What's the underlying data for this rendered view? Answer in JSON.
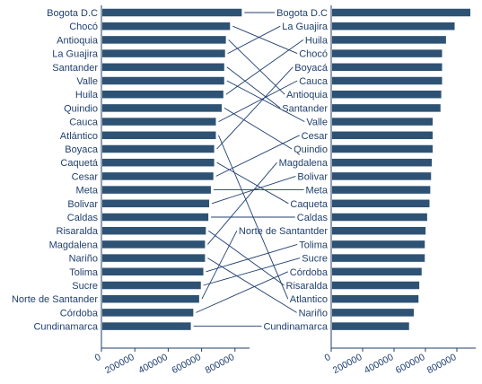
{
  "colors": {
    "bar": "#2e5274",
    "text": "#1f3f6e",
    "line": "#1f3f6e"
  },
  "chart_data": [
    {
      "type": "bar",
      "orientation": "horizontal",
      "panel": "left",
      "categories": [
        "Bogota D.C",
        "Chocó",
        "Antioquia",
        "La Guajira",
        "Santander",
        "Valle",
        "Huila",
        "Quindio",
        "Cauca",
        "Atlántico",
        "Boyaca",
        "Caquetá",
        "Cesar",
        "Meta",
        "Bolivar",
        "Caldas",
        "Risaralda",
        "Magdalena",
        "Nariño",
        "Tolima",
        "Sucre",
        "Norte de Santander",
        "Córdoba",
        "Cundinamarca"
      ],
      "values": [
        835000,
        765000,
        740000,
        735000,
        730000,
        730000,
        725000,
        715000,
        680000,
        680000,
        670000,
        670000,
        665000,
        650000,
        640000,
        635000,
        620000,
        615000,
        615000,
        605000,
        590000,
        580000,
        545000,
        530000
      ],
      "xlim": [
        0,
        900000
      ],
      "xticks": [
        "0",
        "200000",
        "400000",
        "600000",
        "800000"
      ],
      "xtick_values": [
        0,
        200000,
        400000,
        600000,
        800000
      ]
    },
    {
      "type": "bar",
      "orientation": "horizontal",
      "panel": "right",
      "categories": [
        "Bogota D.C",
        "La Guajira",
        "Huila",
        "Chocó",
        "Boyacá",
        "Cauca",
        "Antioquia",
        "Santander",
        "Valle",
        "Cesar",
        "Quindio",
        "Magdalena",
        "Bolivar",
        "Meta",
        "Caqueta",
        "Caldas",
        "Norte de Santantder",
        "Tolima",
        "Sucre",
        "Córdoba",
        "Risaralda",
        "Atlantico",
        "Nariño",
        "Cundinamarca"
      ],
      "values": [
        880000,
        780000,
        725000,
        700000,
        700000,
        700000,
        695000,
        690000,
        640000,
        640000,
        640000,
        635000,
        630000,
        625000,
        620000,
        605000,
        595000,
        590000,
        590000,
        570000,
        555000,
        550000,
        520000,
        490000
      ],
      "xlim": [
        0,
        900000
      ],
      "xticks": [
        "0",
        "200000",
        "400000",
        "600000",
        "800000"
      ],
      "xtick_values": [
        0,
        200000,
        400000,
        600000,
        800000
      ]
    }
  ],
  "links": [
    [
      "Bogota D.C",
      "Bogota D.C"
    ],
    [
      "Chocó",
      "Chocó"
    ],
    [
      "Antioquia",
      "Antioquia"
    ],
    [
      "La Guajira",
      "La Guajira"
    ],
    [
      "Santander",
      "Santander"
    ],
    [
      "Valle",
      "Valle"
    ],
    [
      "Huila",
      "Huila"
    ],
    [
      "Quindio",
      "Quindio"
    ],
    [
      "Cauca",
      "Cauca"
    ],
    [
      "Atlántico",
      "Atlantico"
    ],
    [
      "Boyaca",
      "Boyacá"
    ],
    [
      "Caquetá",
      "Caqueta"
    ],
    [
      "Cesar",
      "Cesar"
    ],
    [
      "Meta",
      "Meta"
    ],
    [
      "Bolivar",
      "Bolivar"
    ],
    [
      "Caldas",
      "Caldas"
    ],
    [
      "Risaralda",
      "Risaralda"
    ],
    [
      "Magdalena",
      "Magdalena"
    ],
    [
      "Nariño",
      "Nariño"
    ],
    [
      "Tolima",
      "Tolima"
    ],
    [
      "Sucre",
      "Sucre"
    ],
    [
      "Norte de Santander",
      "Norte de Santantder"
    ],
    [
      "Córdoba",
      "Córdoba"
    ],
    [
      "Cundinamarca",
      "Cundinamarca"
    ]
  ]
}
